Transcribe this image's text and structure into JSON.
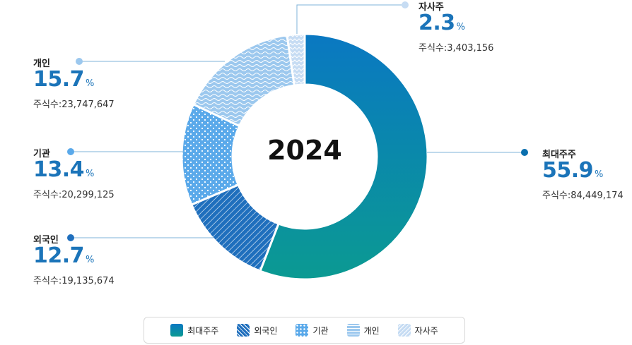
{
  "chart_data": {
    "type": "donut",
    "center_label": "2024",
    "percent_unit": "%",
    "categories": [
      "최대주주",
      "외국인",
      "기관",
      "개인",
      "자사주"
    ],
    "values": [
      55.9,
      12.7,
      13.4,
      15.7,
      2.3
    ],
    "shares_prefix": "주식수:",
    "shares": [
      "84,449,174",
      "19,135,674",
      "20,299,125",
      "23,747,647",
      "3,403,156"
    ],
    "value_labels": [
      "55.9",
      "12.7",
      "13.4",
      "15.7",
      "2.3"
    ],
    "colors": [
      "#0a7fc4",
      "#1f6fbd",
      "#5aa9ea",
      "#9cc8ee",
      "#c6dcf3"
    ],
    "legend_placement": "bottom"
  }
}
